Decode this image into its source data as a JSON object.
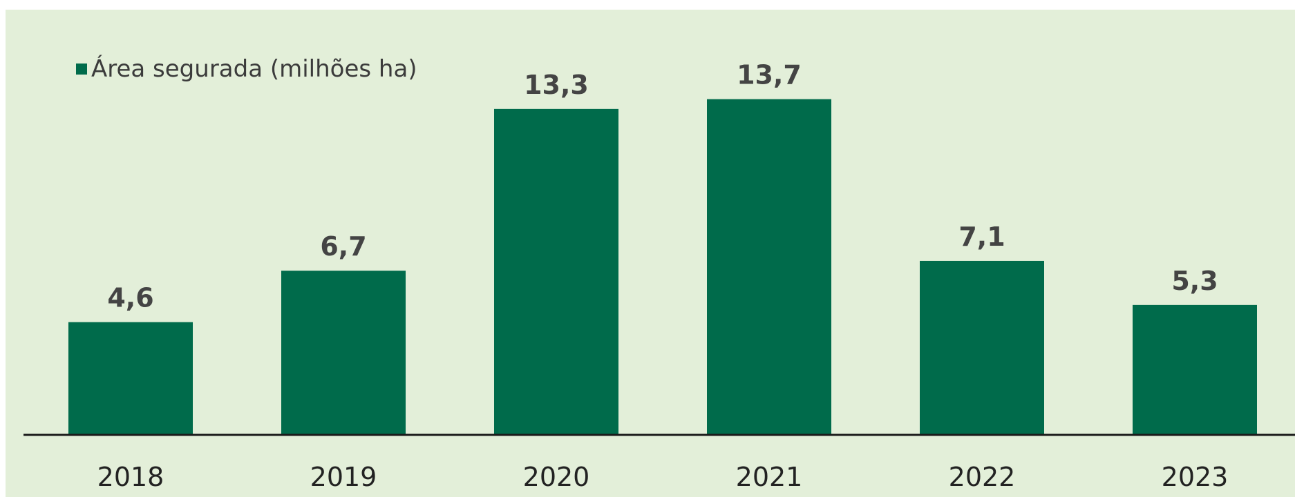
{
  "chart_data": {
    "type": "bar",
    "categories": [
      "2018",
      "2019",
      "2020",
      "2021",
      "2022",
      "2023"
    ],
    "series": [
      {
        "name": "Área segurada (milhões ha)",
        "values": [
          4.6,
          6.7,
          13.3,
          13.7,
          7.1,
          5.3
        ],
        "value_labels": [
          "4,6",
          "6,7",
          "13,3",
          "13,7",
          "7,1",
          "5,3"
        ],
        "color": "#006b4b"
      }
    ],
    "title": "",
    "xlabel": "",
    "ylabel": "",
    "ylim": [
      0,
      14.5
    ],
    "grid": false,
    "legend": "top-left"
  },
  "colors": {
    "background": "#e3efd9",
    "bar": "#006b4b",
    "axis": "#1a1a1a"
  }
}
